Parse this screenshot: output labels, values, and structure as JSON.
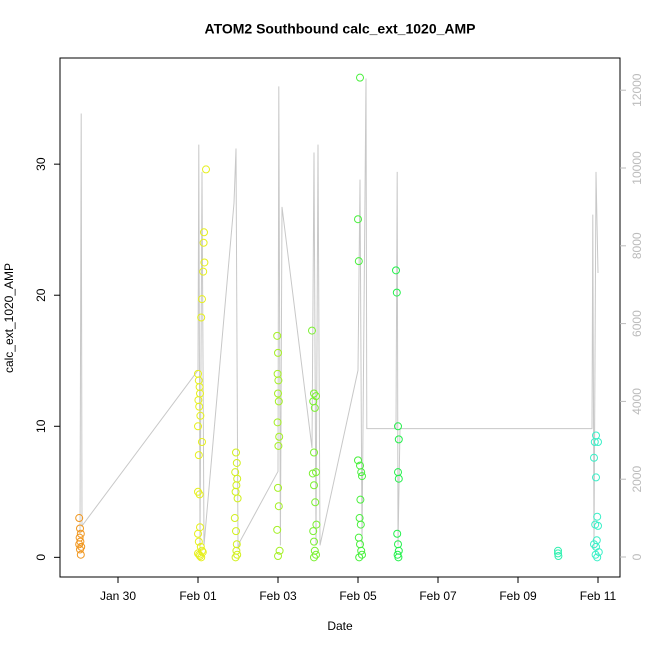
{
  "chart_data": {
    "type": "scatter",
    "title": "ATOM2 Southbound calc_ext_1020_AMP",
    "x_label": "Date",
    "y_label": "calc_ext_1020_AMP",
    "xlim": [
      -1.45,
      12.55
    ],
    "ylim": [
      -1.5,
      38.1
    ],
    "y2lim": [
      -514,
      12828
    ],
    "xticks": [
      {
        "value": 0,
        "label": "Jan 30"
      },
      {
        "value": 2,
        "label": "Feb 01"
      },
      {
        "value": 4,
        "label": "Feb 03"
      },
      {
        "value": 6,
        "label": "Feb 05"
      },
      {
        "value": 8,
        "label": "Feb 07"
      },
      {
        "value": 10,
        "label": "Feb 09"
      },
      {
        "value": 12,
        "label": "Feb 11"
      }
    ],
    "yticks": [
      0,
      10,
      20,
      30
    ],
    "y2ticks": [
      0,
      2000,
      4000,
      6000,
      8000,
      10000,
      12000
    ],
    "series": [
      {
        "color": "#f0961e",
        "x": [
          -0.97,
          -0.95,
          -0.93,
          -0.96,
          -0.94,
          -0.97,
          -0.92,
          -0.95,
          -0.93
        ],
        "values": [
          3.0,
          2.2,
          1.8,
          1.5,
          1.2,
          1.0,
          0.8,
          0.6,
          0.2
        ]
      },
      {
        "color": "#e6f01e",
        "x": [
          2.2,
          2.15,
          2.14,
          2.16,
          2.13,
          2.1,
          2.08,
          2.0,
          2.02,
          2.04,
          2.05,
          2.01,
          2.03,
          2.06,
          2.0,
          2.1,
          2.02,
          2.0,
          2.04,
          2.05,
          2.0,
          2.02,
          2.07,
          2.1,
          2.0,
          2.03,
          2.05,
          2.08,
          2.12
        ],
        "values": [
          29.6,
          24.8,
          24.0,
          22.5,
          21.8,
          19.7,
          18.3,
          14.0,
          13.5,
          13.0,
          12.5,
          12.0,
          11.5,
          10.8,
          10.0,
          8.8,
          7.8,
          5.0,
          4.8,
          2.3,
          1.8,
          1.2,
          0.8,
          0.5,
          0.3,
          0.2,
          0.1,
          0.0,
          0.4
        ]
      },
      {
        "color": "#d2f01e",
        "x": [
          2.95,
          2.97,
          2.93,
          2.98,
          2.96,
          2.94,
          2.99,
          2.92,
          2.95,
          2.97,
          2.96,
          2.98,
          2.94
        ],
        "values": [
          8.0,
          7.2,
          6.5,
          6.0,
          5.5,
          5.0,
          4.5,
          3.0,
          2.0,
          1.0,
          0.5,
          0.2,
          0.0
        ]
      },
      {
        "color": "#a5f026",
        "x": [
          3.98,
          4.0,
          3.99,
          4.01,
          4.0,
          4.02,
          3.99,
          4.03,
          4.01,
          4.0,
          4.02,
          3.98,
          4.04,
          4.0
        ],
        "values": [
          16.9,
          15.6,
          14.0,
          13.5,
          12.5,
          11.9,
          10.3,
          9.2,
          8.5,
          5.3,
          3.9,
          2.1,
          0.5,
          0.1
        ]
      },
      {
        "color": "#7cf032",
        "x": [
          4.85,
          4.9,
          4.95,
          4.88,
          4.92,
          4.9,
          4.95,
          4.87,
          4.9,
          4.93,
          4.96,
          4.88,
          4.9,
          4.92,
          4.95,
          4.9
        ],
        "values": [
          17.3,
          12.5,
          12.3,
          11.9,
          11.4,
          8.0,
          6.5,
          6.4,
          5.5,
          4.2,
          2.5,
          2.0,
          1.2,
          0.5,
          0.2,
          0.0
        ]
      },
      {
        "color": "#48f03c",
        "x": [
          6.05,
          6.0,
          6.02,
          6.0,
          6.05,
          6.08,
          6.1,
          6.06,
          6.04,
          6.07,
          6.02,
          6.05,
          6.08,
          6.1,
          6.03
        ],
        "values": [
          36.6,
          25.8,
          22.6,
          7.4,
          7.0,
          6.5,
          6.2,
          4.4,
          3.0,
          2.5,
          1.5,
          1.0,
          0.5,
          0.2,
          0.0
        ]
      },
      {
        "color": "#24f04c",
        "x": [
          6.95,
          6.97,
          7.0,
          7.02,
          7.0,
          7.02,
          6.98,
          7.0,
          7.02,
          6.99,
          7.01
        ],
        "values": [
          21.9,
          20.2,
          10.0,
          9.0,
          6.5,
          6.0,
          1.8,
          1.0,
          0.5,
          0.2,
          0.0
        ]
      },
      {
        "color": "#30f0b0",
        "x": [
          11.0,
          11.0,
          11.01
        ],
        "values": [
          0.5,
          0.3,
          0.1
        ]
      },
      {
        "color": "#3cf0c8",
        "x": [
          11.95,
          11.92,
          12.0,
          11.98,
          11.9,
          11.95,
          11.93,
          12.0,
          11.97,
          11.9,
          11.95,
          12.02,
          11.94,
          11.98
        ],
        "values": [
          9.3,
          8.8,
          8.8,
          3.1,
          7.6,
          6.1,
          2.5,
          2.4,
          1.3,
          1.0,
          0.8,
          0.4,
          0.2,
          0.0
        ]
      },
      {
        "type": "line",
        "axis": "y2",
        "color": "#c8c8c8",
        "x": [
          -0.95,
          -0.92,
          -0.9,
          2.0,
          2.02,
          2.05,
          2.1,
          2.15,
          2.9,
          2.95,
          3.0,
          3.05,
          4.0,
          4.02,
          4.06,
          4.1,
          4.85,
          4.9,
          4.95,
          5.0,
          5.05,
          6.0,
          6.05,
          6.1,
          6.2,
          6.22,
          6.95,
          6.98,
          7.0,
          7.05,
          11.0,
          11.02,
          11.85,
          11.87,
          11.9,
          11.95,
          12.0
        ],
        "values": [
          600,
          11400,
          800,
          4800,
          10600,
          200,
          9900,
          300,
          9100,
          10500,
          200,
          400,
          2200,
          12100,
          300,
          9000,
          2800,
          10400,
          300,
          10600,
          300,
          4800,
          9700,
          300,
          12300,
          3300,
          3300,
          9900,
          300,
          3300,
          3300,
          3300,
          3300,
          8800,
          200,
          9900,
          7300
        ]
      }
    ]
  }
}
